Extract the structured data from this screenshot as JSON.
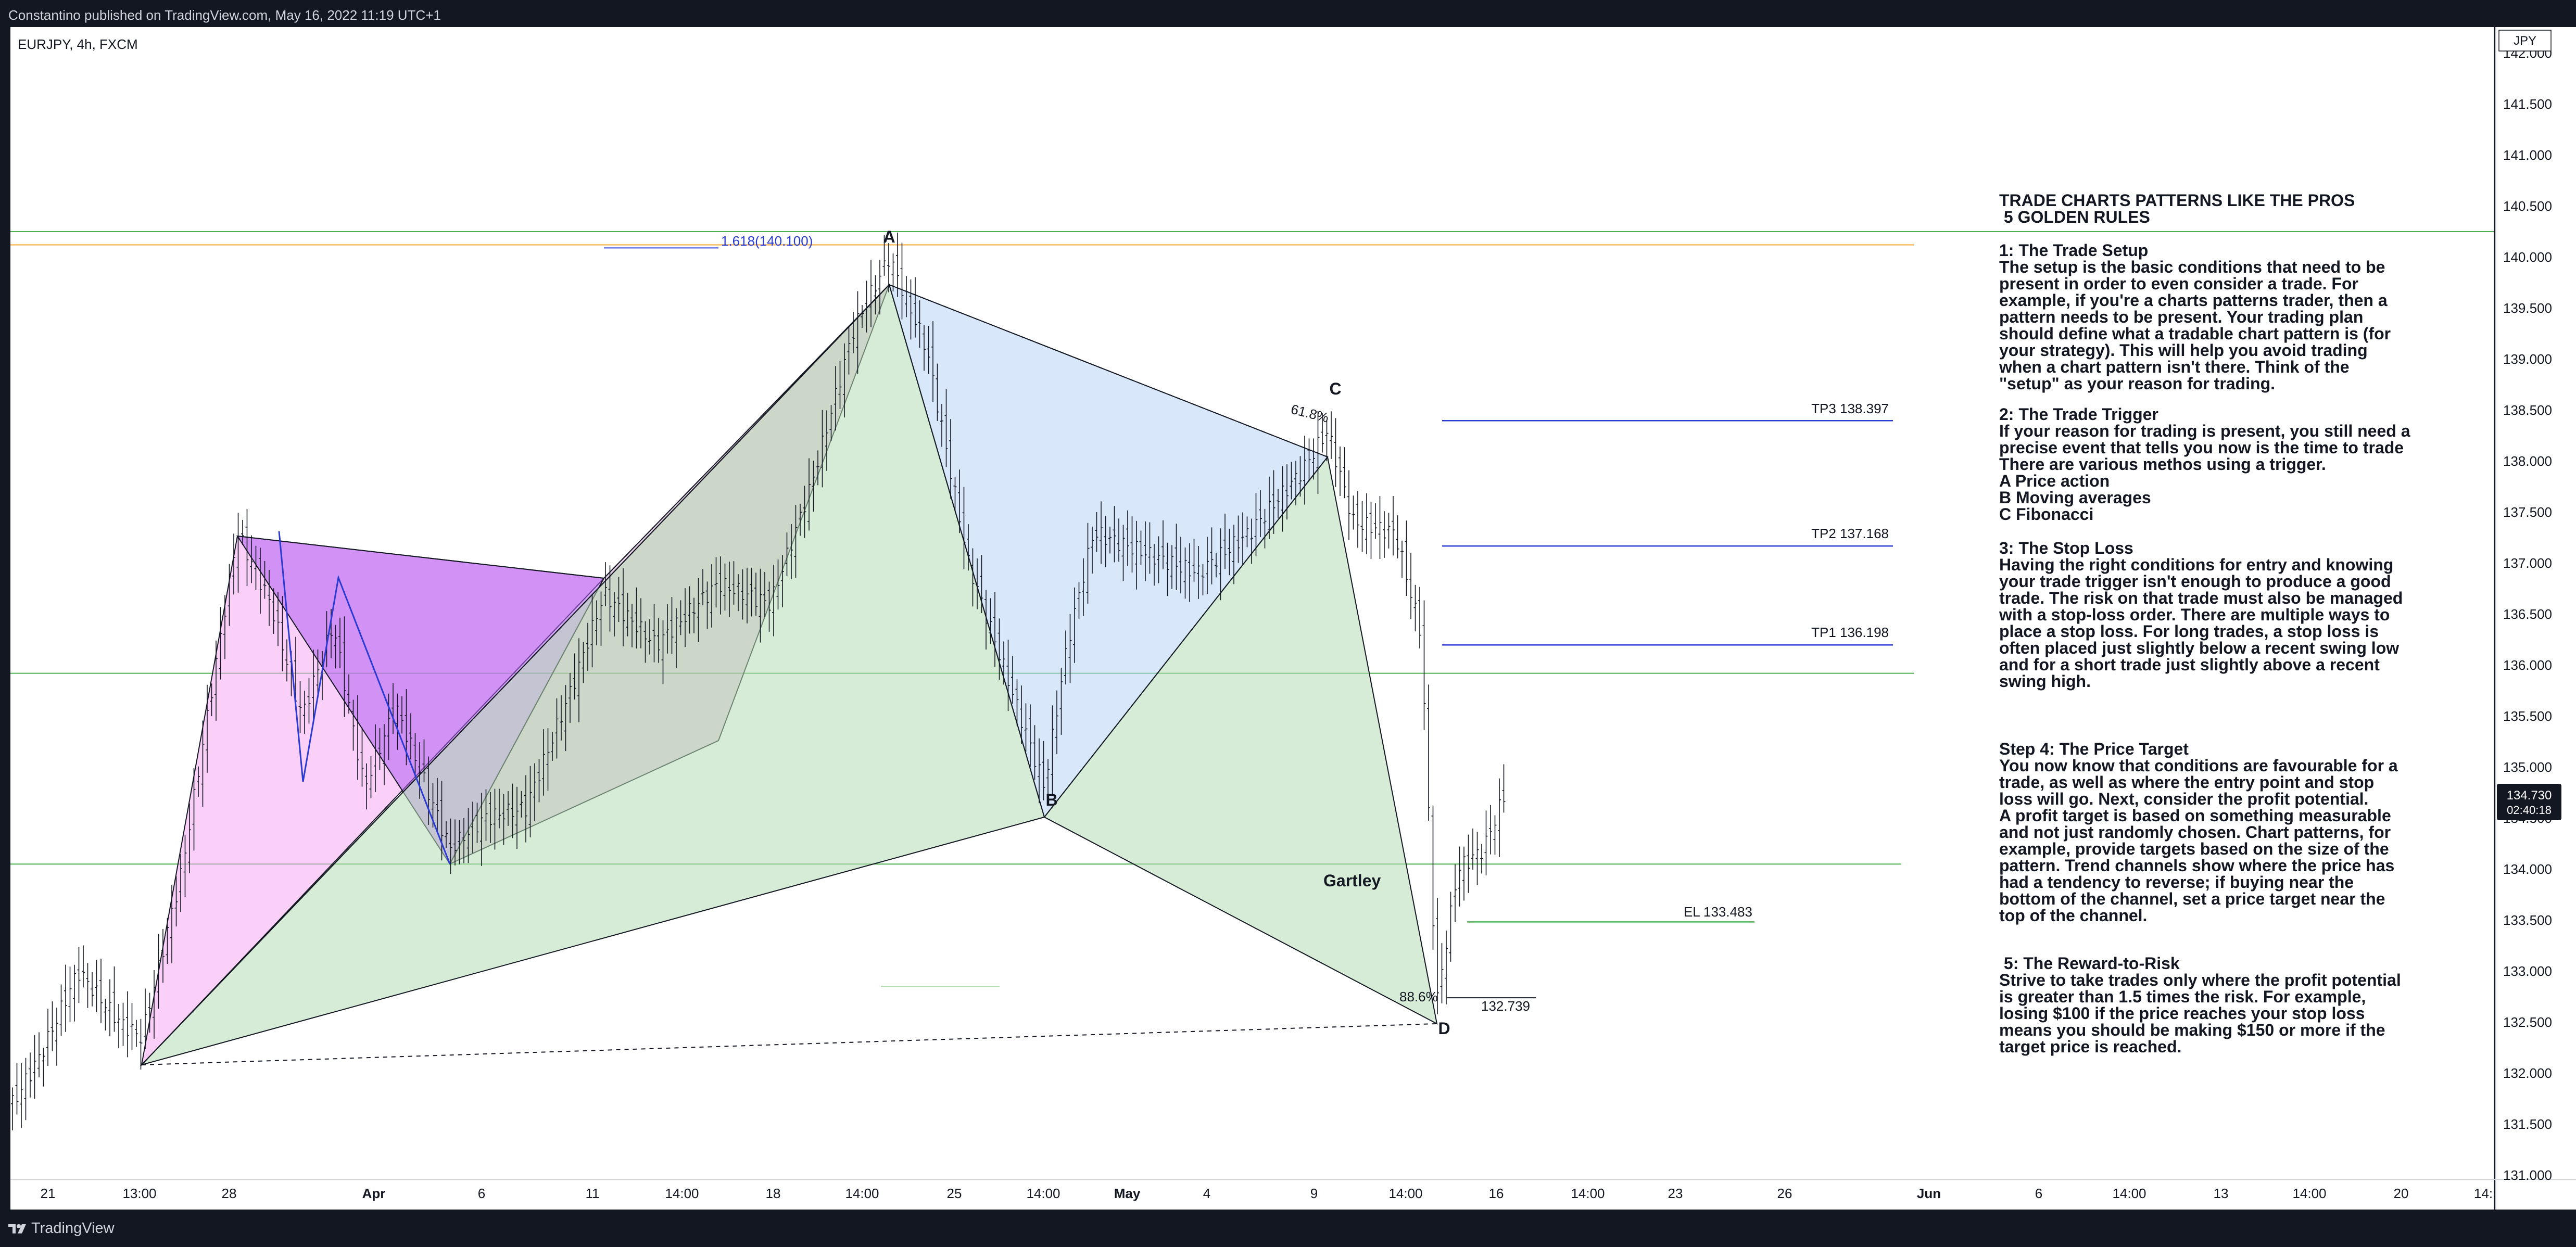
{
  "header": {
    "published": "Constantino published on TradingView.com, May 16, 2022 11:19 UTC+1"
  },
  "footer": {
    "brand": "TradingView"
  },
  "colors": {
    "background": "#131722",
    "panel": "#ffffff",
    "bullish_candle": "#131722",
    "accent_orange": "#f5a623",
    "hline_green": "#4caf50",
    "tp_blue": "#2a3bd4"
  },
  "chart_data": {
    "type": "candlestick",
    "symbol_label": "EURJPY, 4h, FXCM",
    "currency": "JPY",
    "last_price": "134.730",
    "countdown": "02:40:18",
    "ylim": [
      131.0,
      142.0
    ],
    "y_ticks": [
      "131.000",
      "131.500",
      "132.000",
      "132.500",
      "133.000",
      "133.500",
      "134.000",
      "134.500",
      "135.000",
      "135.500",
      "136.000",
      "136.500",
      "137.000",
      "137.500",
      "138.000",
      "138.500",
      "139.000",
      "139.500",
      "140.000",
      "140.500",
      "141.000",
      "141.500",
      "142.000"
    ],
    "x_ticks": [
      "21",
      "13:00",
      "28",
      "Apr",
      "6",
      "11",
      "14:00",
      "18",
      "14:00",
      "25",
      "14:00",
      "May",
      "4",
      "9",
      "14:00",
      "16",
      "14:00",
      "23",
      "26",
      "Jun",
      "6",
      "14:00",
      "13",
      "14:00",
      "20",
      "14:"
    ],
    "bold_x_ticks": [
      "Apr",
      "May",
      "Jun"
    ],
    "pattern": {
      "name": "Gartley",
      "points": [
        {
          "label": "A",
          "price": 140.0
        },
        {
          "label": "B",
          "price": 134.8
        },
        {
          "label": "C",
          "price": 138.3
        },
        {
          "label": "D",
          "price": 132.6
        }
      ],
      "ratios": [
        "61.8%",
        "88.6%"
      ]
    },
    "fib_extension": "1.618(140.100)",
    "levels": [
      {
        "label": "TP3 138.397",
        "price": 138.397
      },
      {
        "label": "TP2 137.168",
        "price": 137.168
      },
      {
        "label": "TP1 136.198",
        "price": 136.198
      },
      {
        "label": "EL 133.483",
        "price": 133.483
      },
      {
        "label": "132.739",
        "price": 132.739
      }
    ],
    "horizontal_lines": [
      140.25,
      140.12,
      135.92,
      134.05
    ]
  },
  "notes": {
    "title1": "TRADE CHARTS PATTERNS LIKE THE PROS",
    "title2": " 5 GOLDEN RULES",
    "sections": [
      {
        "heading": "1: The Trade Setup",
        "lines": [
          "The setup is the basic conditions that need to be",
          "present in order to even consider a trade. For",
          "example, if you're a charts patterns trader, then a",
          "pattern needs to be present. Your trading plan",
          "should define what a tradable chart pattern is (for",
          "your strategy). This will help you avoid trading",
          "when a chart pattern isn't there. Think of the",
          "\"setup\" as your reason for trading."
        ]
      },
      {
        "heading": "2: The Trade Trigger",
        "lines": [
          "If your reason for trading is present, you still need a",
          "precise event that tells you now is the time to trade",
          "There are various methos using a trigger.",
          "A Price action",
          "B Moving averages",
          "C Fibonacci"
        ]
      },
      {
        "heading": "3: The Stop Loss",
        "lines": [
          "Having the right conditions for entry and knowing",
          "your trade trigger isn't enough to produce a good",
          "trade. The risk on that trade must also be managed",
          "with a stop-loss order. There are multiple ways to",
          "place a stop loss. For long trades, a stop loss is",
          "often placed just slightly below a recent swing low",
          "and for a short trade just slightly above a recent",
          "swing high."
        ]
      },
      {
        "heading": "Step 4: The Price Target",
        "lines": [
          "You now know that conditions are favourable for a",
          "trade, as well as where the entry point and stop",
          "loss will go. Next, consider the profit potential.",
          "A profit target is based on something measurable",
          "and not just randomly chosen. Chart patterns, for",
          "example, provide targets based on the size of the",
          "pattern. Trend channels show where the price has",
          "had a tendency to reverse; if buying near the",
          "bottom of the channel, set a price target near the",
          "top of the channel."
        ]
      },
      {
        "heading": " 5: The Reward-to-Risk",
        "lines": [
          "Strive to take trades only where the profit potential",
          "is greater than 1.5 times the risk. For example,",
          "losing $100 if the price reaches your stop loss",
          "means you should be making $150 or more if the",
          "target price is reached."
        ]
      }
    ]
  }
}
